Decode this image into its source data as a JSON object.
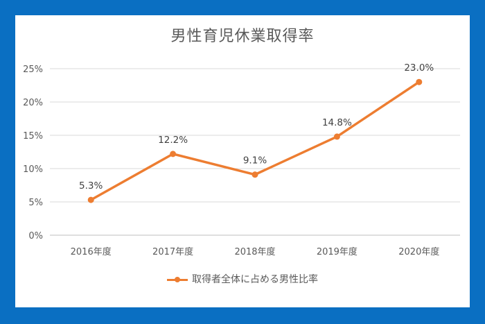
{
  "chart_data": {
    "type": "line",
    "title": "男性育児休業取得率",
    "categories": [
      "2016年度",
      "2017年度",
      "2018年度",
      "2019年度",
      "2020年度"
    ],
    "series": [
      {
        "name": "取得者全体に占める男性比率",
        "values": [
          5.3,
          12.2,
          9.1,
          14.8,
          23.0
        ],
        "labels": [
          "5.3%",
          "12.2%",
          "9.1%",
          "14.8%",
          "23.0%"
        ],
        "color": "#ed7d31"
      }
    ],
    "y_ticks": [
      "0%",
      "5%",
      "10%",
      "15%",
      "20%",
      "25%"
    ],
    "ylim": [
      0,
      25
    ],
    "grid": true,
    "legend_position": "bottom",
    "frame_color": "#0a6fc2"
  }
}
